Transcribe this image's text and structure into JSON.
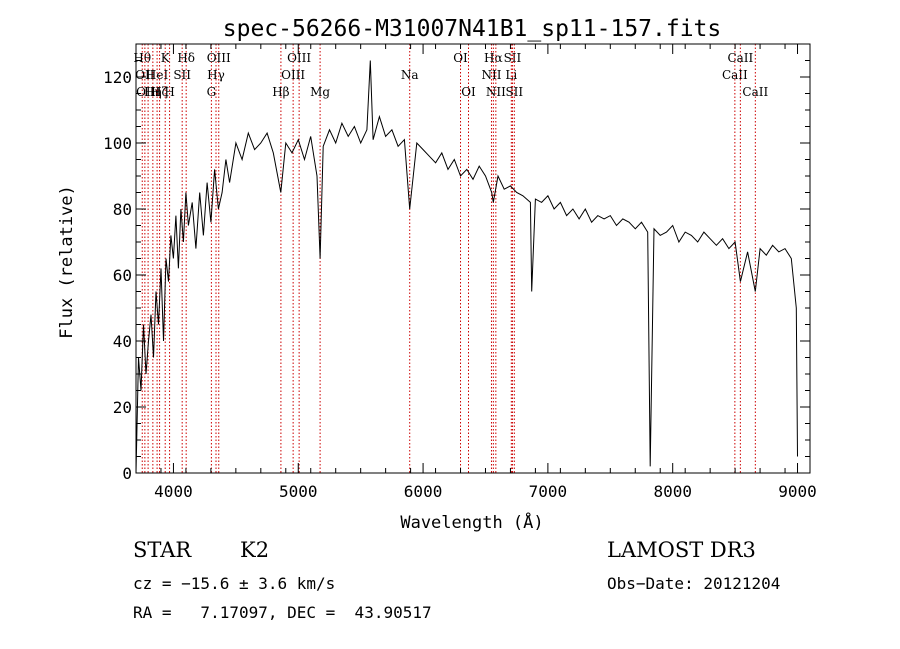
{
  "chart_data": {
    "type": "line",
    "title": "spec-56266-M31007N41B1_sp11-157.fits",
    "xlabel": "Wavelength (Å)",
    "ylabel": "Flux (relative)",
    "xlim": [
      3700,
      9100
    ],
    "ylim": [
      0,
      130
    ],
    "xticks": [
      4000,
      5000,
      6000,
      7000,
      8000,
      9000
    ],
    "yticks": [
      0,
      20,
      40,
      60,
      80,
      100,
      120
    ],
    "grid": false,
    "line_color": "#000000",
    "marker_color": "#cc0000",
    "series": [
      {
        "x": [
          3700,
          3720,
          3740,
          3760,
          3780,
          3800,
          3820,
          3840,
          3860,
          3880,
          3900,
          3920,
          3940,
          3960,
          3980,
          4000,
          4020,
          4040,
          4060,
          4080,
          4100,
          4120,
          4150,
          4180,
          4210,
          4240,
          4270,
          4300,
          4330,
          4360,
          4390,
          4420,
          4450,
          4500,
          4550,
          4600,
          4650,
          4700,
          4750,
          4800,
          4860,
          4900,
          4950,
          5000,
          5050,
          5100,
          5150,
          5175,
          5200,
          5250,
          5300,
          5350,
          5400,
          5450,
          5500,
          5550,
          5577,
          5600,
          5650,
          5700,
          5750,
          5800,
          5850,
          5893,
          5950,
          6000,
          6050,
          6100,
          6150,
          6200,
          6250,
          6300,
          6350,
          6400,
          6450,
          6500,
          6550,
          6563,
          6600,
          6650,
          6700,
          6750,
          6800,
          6860,
          6870,
          6900,
          6950,
          7000,
          7050,
          7100,
          7150,
          7200,
          7250,
          7300,
          7350,
          7400,
          7450,
          7500,
          7550,
          7600,
          7650,
          7700,
          7750,
          7800,
          7820,
          7850,
          7900,
          7950,
          8000,
          8050,
          8100,
          8150,
          8200,
          8250,
          8300,
          8350,
          8400,
          8450,
          8500,
          8542,
          8600,
          8662,
          8700,
          8750,
          8800,
          8850,
          8900,
          8950,
          8990,
          9000
        ],
        "y": [
          0,
          35,
          25,
          45,
          30,
          40,
          48,
          35,
          55,
          45,
          62,
          40,
          65,
          58,
          72,
          65,
          78,
          62,
          80,
          70,
          85,
          75,
          82,
          68,
          85,
          72,
          88,
          76,
          92,
          80,
          85,
          95,
          88,
          100,
          95,
          103,
          98,
          100,
          103,
          97,
          85,
          100,
          97,
          101,
          95,
          102,
          90,
          65,
          99,
          104,
          100,
          106,
          102,
          105,
          100,
          104,
          125,
          101,
          108,
          102,
          104,
          99,
          101,
          80,
          100,
          98,
          96,
          94,
          97,
          92,
          95,
          90,
          92,
          89,
          93,
          90,
          85,
          82,
          90,
          86,
          87,
          85,
          84,
          82,
          55,
          83,
          82,
          84,
          80,
          82,
          78,
          80,
          77,
          80,
          76,
          78,
          77,
          78,
          75,
          77,
          76,
          74,
          76,
          73,
          2,
          74,
          72,
          73,
          75,
          70,
          73,
          72,
          70,
          73,
          71,
          69,
          71,
          68,
          70,
          58,
          67,
          55,
          68,
          66,
          69,
          67,
          68,
          65,
          50,
          5
        ]
      }
    ],
    "line_markers": [
      {
        "x": 3750,
        "label": "Hθ",
        "row": 1
      },
      {
        "x": 3771,
        "label": "OII",
        "row": 2
      },
      {
        "x": 3797,
        "label": "OIII",
        "row": 3
      },
      {
        "x": 3835,
        "label": "Hη",
        "row": 3
      },
      {
        "x": 3869,
        "label": "HeI",
        "row": 2
      },
      {
        "x": 3889,
        "label": "Hζ",
        "row": 3
      },
      {
        "x": 3934,
        "label": "K",
        "row": 1
      },
      {
        "x": 3969,
        "label": "H",
        "row": 3
      },
      {
        "x": 4070,
        "label": "SII",
        "row": 2
      },
      {
        "x": 4102,
        "label": "Hδ",
        "row": 1
      },
      {
        "x": 4304,
        "label": "G",
        "row": 3
      },
      {
        "x": 4341,
        "label": "Hγ",
        "row": 2
      },
      {
        "x": 4363,
        "label": "OIII",
        "row": 1
      },
      {
        "x": 4861,
        "label": "Hβ",
        "row": 3
      },
      {
        "x": 4959,
        "label": "OIII",
        "row": 2
      },
      {
        "x": 5007,
        "label": "OIII",
        "row": 1
      },
      {
        "x": 5175,
        "label": "Mg",
        "row": 3
      },
      {
        "x": 5893,
        "label": "Na",
        "row": 2
      },
      {
        "x": 6300,
        "label": "OI",
        "row": 1
      },
      {
        "x": 6364,
        "label": "OI",
        "row": 3
      },
      {
        "x": 6548,
        "label": "NII",
        "row": 2
      },
      {
        "x": 6563,
        "label": "Hα",
        "row": 1
      },
      {
        "x": 6583,
        "label": "NII",
        "row": 3
      },
      {
        "x": 6707,
        "label": "Li",
        "row": 2
      },
      {
        "x": 6716,
        "label": "SII",
        "row": 1
      },
      {
        "x": 6731,
        "label": "SII",
        "row": 3
      },
      {
        "x": 8498,
        "label": "CaII",
        "row": 2
      },
      {
        "x": 8542,
        "label": "CaII",
        "row": 1
      },
      {
        "x": 8662,
        "label": "CaII",
        "row": 3
      }
    ]
  },
  "info": {
    "object_type": "STAR",
    "subclass": "K2",
    "redshift": "cz = −15.6 ± 3.6 km/s",
    "coords": "RA =   7.17097, DEC =  43.90517",
    "survey": "LAMOST DR3",
    "obs_date": "Obs−Date: 20121204"
  }
}
